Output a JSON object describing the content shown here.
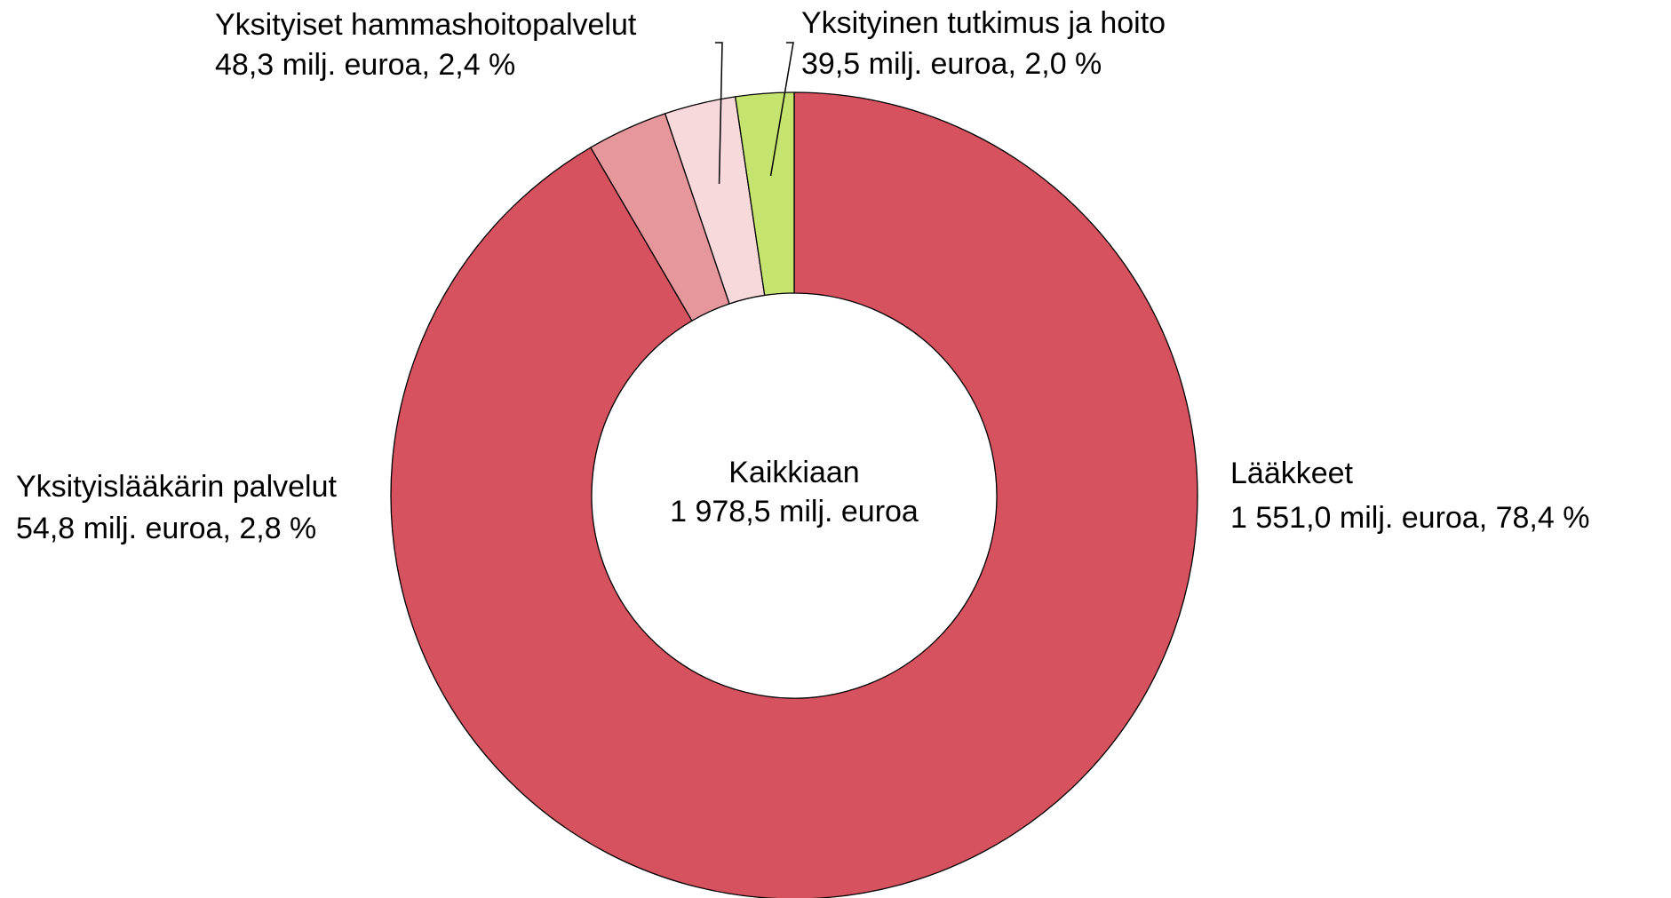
{
  "chart_data": {
    "type": "donut",
    "categories": [
      "Lääkkeet",
      "Yksityislääkärin palvelut",
      "Yksityiset hammashoitopalvelut",
      "Yksityinen tutkimus ja hoito"
    ],
    "values": [
      1551.0,
      54.8,
      48.3,
      39.5
    ],
    "value_labels": [
      "1 551,0 milj. euroa, 78,4 %",
      "54,8 milj. euroa, 2,8 %",
      "48,3 milj. euroa, 2,4 %",
      "39,5 milj. euroa, 2,0 %"
    ],
    "colors": [
      "#d6525e",
      "#e6979c",
      "#f7d9dc",
      "#c5e36f"
    ],
    "center_title": "Kaikkiaan",
    "total": 1978.5,
    "total_label": "1 978,5 milj. euroa"
  }
}
